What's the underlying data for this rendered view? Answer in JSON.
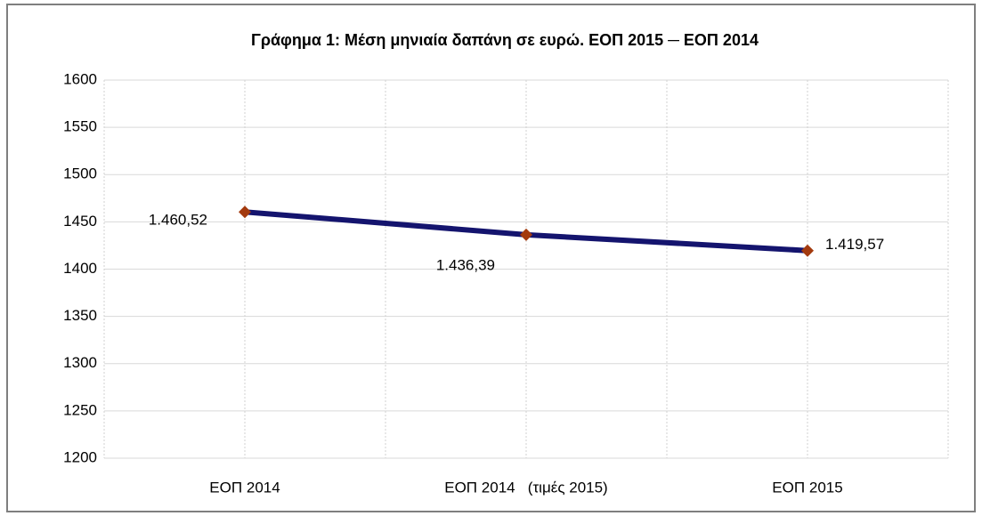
{
  "chart_data": {
    "type": "line",
    "title": "Γράφημα 1: Μέση μηνιαία δαπάνη σε ευρώ. ΕΟΠ 2015 ─ ΕΟΠ 2014",
    "categories": [
      "ΕΟΠ 2014",
      "ΕΟΠ 2014   (τιμές 2015)",
      "ΕΟΠ 2015"
    ],
    "values": [
      1460.52,
      1436.39,
      1419.57
    ],
    "value_labels": [
      "1.460,52",
      "1.436,39",
      "1.419,57"
    ],
    "color": "#14146e",
    "marker_color": "#a33a0e",
    "ylim": [
      1200,
      1600
    ],
    "yticks": [
      1200,
      1250,
      1300,
      1350,
      1400,
      1450,
      1500,
      1550,
      1600
    ],
    "grid": true
  }
}
